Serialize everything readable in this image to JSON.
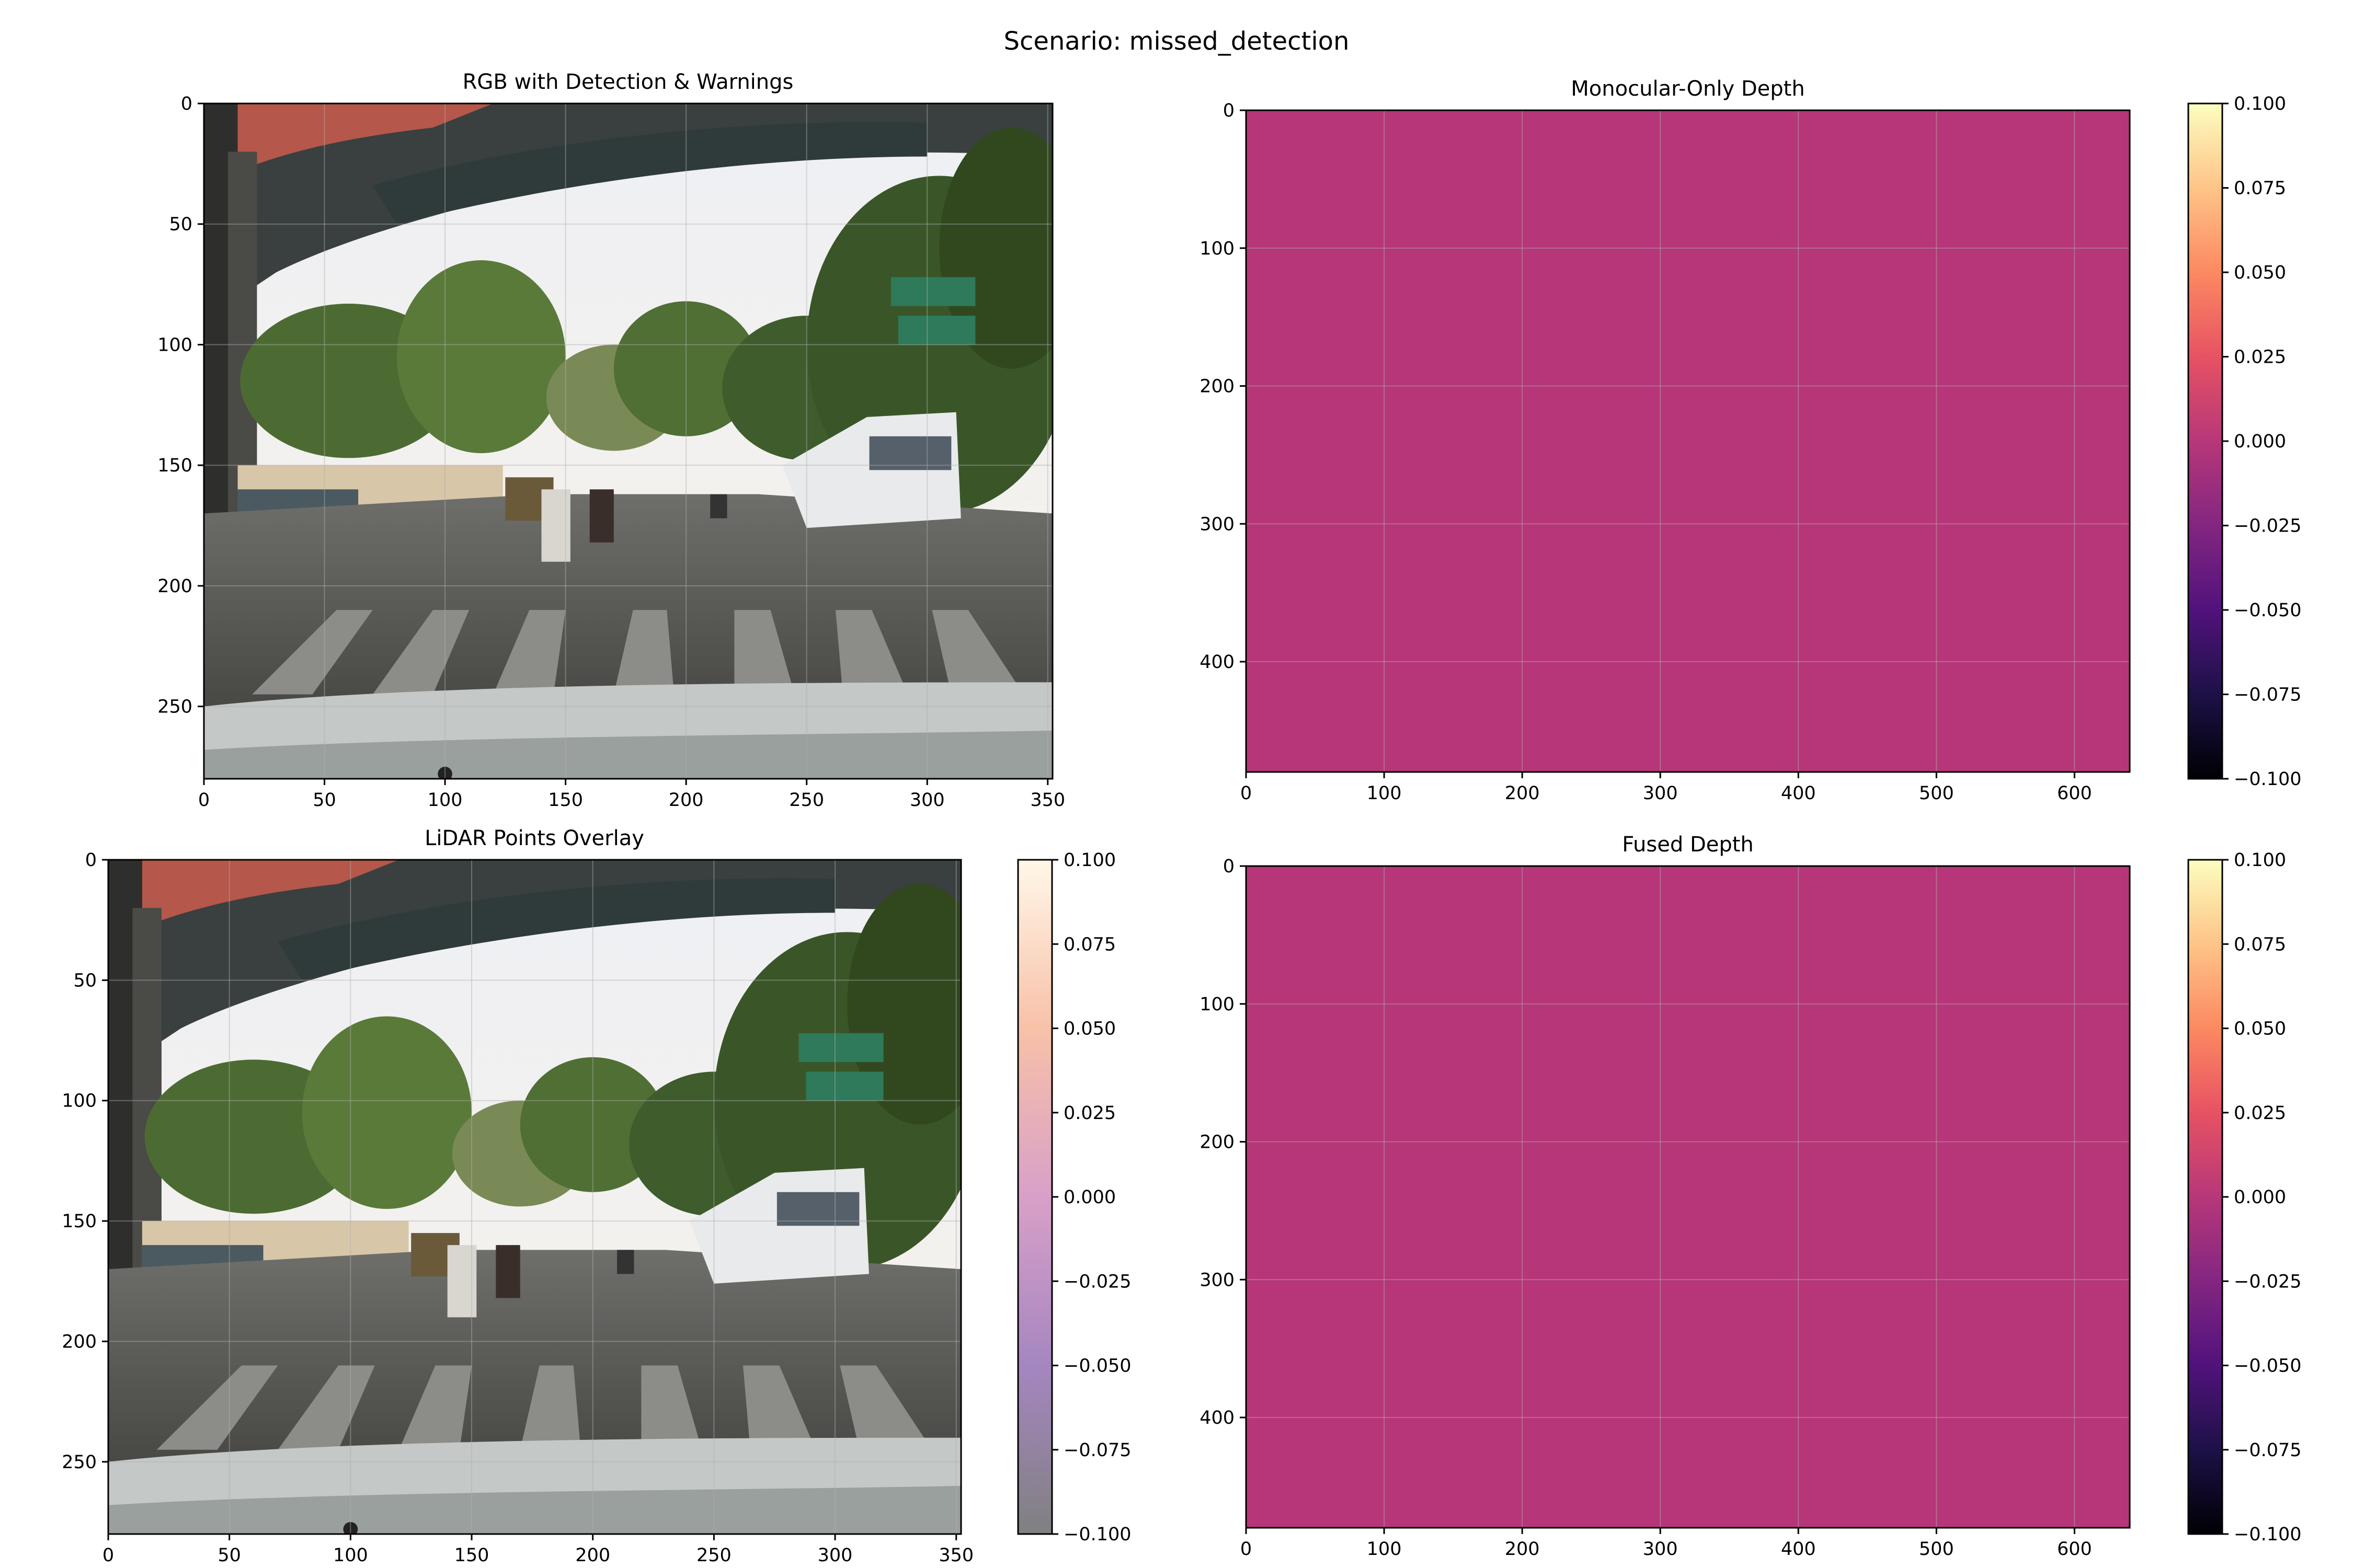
{
  "figure": {
    "suptitle": "Scenario: missed_detection"
  },
  "chart_data": [
    {
      "id": "rgb",
      "type": "image",
      "title": "RGB with Detection & Warnings",
      "content": "dashcam road scene",
      "xlim": [
        0,
        352
      ],
      "ylim": [
        280,
        0
      ],
      "xticks": [
        0,
        50,
        100,
        150,
        200,
        250,
        300,
        350
      ],
      "yticks": [
        0,
        50,
        100,
        150,
        200,
        250
      ],
      "grid": true
    },
    {
      "id": "mono",
      "type": "heatmap",
      "title": "Monocular-Only Depth",
      "value": 0.0,
      "colormap": "magma",
      "fill_color": "#b63679",
      "xlim": [
        0,
        640
      ],
      "ylim": [
        480,
        0
      ],
      "xticks": [
        0,
        100,
        200,
        300,
        400,
        500,
        600
      ],
      "yticks": [
        0,
        100,
        200,
        300,
        400
      ],
      "grid": true,
      "colorbar": {
        "range": [
          -0.1,
          0.1
        ],
        "ticks": [
          "0.100",
          "0.075",
          "0.050",
          "0.025",
          "0.000",
          "−0.025",
          "−0.050",
          "−0.075",
          "−0.100"
        ]
      }
    },
    {
      "id": "lidar",
      "type": "image",
      "title": "LiDAR Points Overlay",
      "content": "dashcam road scene",
      "xlim": [
        0,
        352
      ],
      "ylim": [
        280,
        0
      ],
      "xticks": [
        0,
        50,
        100,
        150,
        200,
        250,
        300,
        350
      ],
      "yticks": [
        0,
        50,
        100,
        150,
        200,
        250
      ],
      "grid": true,
      "colorbar": {
        "range": [
          -0.1,
          0.1
        ],
        "ticks": [
          "0.100",
          "0.075",
          "0.050",
          "0.025",
          "0.000",
          "−0.025",
          "−0.050",
          "−0.075",
          "−0.100"
        ]
      }
    },
    {
      "id": "fused",
      "type": "heatmap",
      "title": "Fused Depth",
      "value": 0.0,
      "colormap": "magma",
      "fill_color": "#b63679",
      "xlim": [
        0,
        640
      ],
      "ylim": [
        480,
        0
      ],
      "xticks": [
        0,
        100,
        200,
        300,
        400,
        500,
        600
      ],
      "yticks": [
        0,
        100,
        200,
        300,
        400
      ],
      "grid": true,
      "colorbar": {
        "range": [
          -0.1,
          0.1
        ],
        "ticks": [
          "0.100",
          "0.075",
          "0.050",
          "0.025",
          "0.000",
          "−0.025",
          "−0.050",
          "−0.075",
          "−0.100"
        ]
      }
    }
  ]
}
